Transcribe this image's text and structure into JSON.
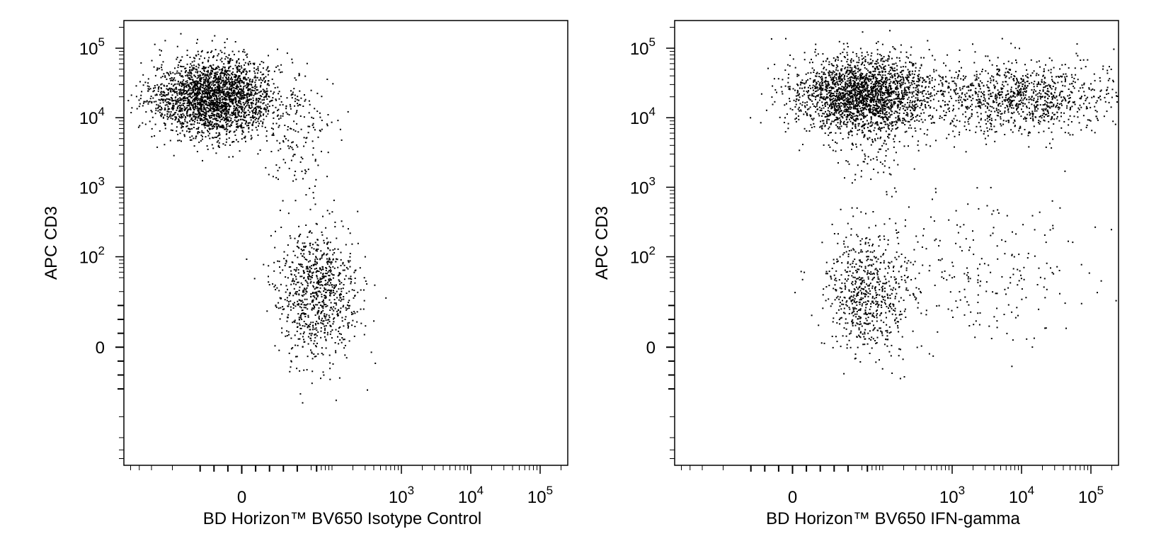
{
  "chart_data": [
    {
      "type": "scatter",
      "xlabel": "BD Horizon™ BV650 Isotype Control",
      "ylabel": "APC CD3",
      "xscale": "biexponential",
      "yscale": "biexponential",
      "xlim": [
        -250,
        250000
      ],
      "ylim": [
        -250,
        250000
      ],
      "x_ticks": [
        "0",
        "10^3",
        "10^4",
        "10^5"
      ],
      "y_ticks": [
        "0",
        "10^2",
        "10^3",
        "10^4",
        "10^5"
      ],
      "grid": false,
      "point_color": "#000000",
      "populations": [
        {
          "id": "cd3-positive",
          "x_center": -20,
          "y_center": 20000,
          "x_spread": 0.45,
          "y_spread": 0.28,
          "count": 2600
        },
        {
          "id": "cd3-positive-tail",
          "x_center": 40,
          "y_center": 5000,
          "x_spread": 0.25,
          "y_spread": 0.45,
          "count": 140
        },
        {
          "id": "cd3-negative",
          "x_center": 60,
          "y_center": 40,
          "x_spread": 0.3,
          "y_spread": 0.45,
          "count": 900
        }
      ]
    },
    {
      "type": "scatter",
      "xlabel": "BD Horizon™ BV650 IFN-gamma",
      "ylabel": "APC CD3",
      "xscale": "biexponential",
      "yscale": "biexponential",
      "xlim": [
        -250,
        250000
      ],
      "ylim": [
        -250,
        250000
      ],
      "x_ticks": [
        "0",
        "10^3",
        "10^4",
        "10^5"
      ],
      "y_ticks": [
        "0",
        "10^2",
        "10^3",
        "10^4",
        "10^5"
      ],
      "grid": false,
      "point_color": "#000000",
      "populations": [
        {
          "id": "cd3-positive-ifng-negative",
          "x_center": 50,
          "y_center": 22000,
          "x_spread": 0.5,
          "y_spread": 0.28,
          "count": 2300
        },
        {
          "id": "cd3-positive-tail",
          "x_center": 80,
          "y_center": 5000,
          "x_spread": 0.25,
          "y_spread": 0.45,
          "count": 120
        },
        {
          "id": "cd3-positive-ifng-positive",
          "x_center": 8000,
          "y_center": 20000,
          "x_spread": 0.7,
          "y_spread": 0.25,
          "count": 1100
        },
        {
          "id": "cd3-negative-ifng-negative",
          "x_center": 60,
          "y_center": 40,
          "x_spread": 0.3,
          "y_spread": 0.45,
          "count": 650
        },
        {
          "id": "cd3-negative-ifng-positive",
          "x_center": 2000,
          "y_center": 60,
          "x_spread": 0.9,
          "y_spread": 0.5,
          "count": 260
        }
      ]
    }
  ]
}
